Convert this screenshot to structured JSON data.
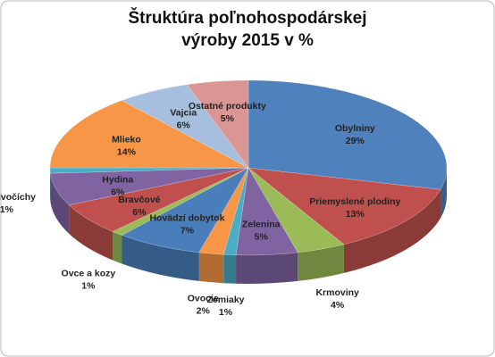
{
  "chart_data": {
    "type": "pie3d",
    "title": "Štruktúra poľnohospodárskej výroby 2015 v %",
    "categories": [
      "Obylniny",
      "Priemyslené plodiny",
      "Krmoviny",
      "Zelenina",
      "Zemiaky",
      "Ovocie",
      "Hovädzí dobytok",
      "Ovce a kozy",
      "Bravčové",
      "Hydina",
      "Iné živočíchy",
      "Mlieko",
      "Vajcia",
      "Ostatné produkty"
    ],
    "values": [
      29,
      13,
      4,
      5,
      1,
      2,
      7,
      1,
      6,
      6,
      1,
      14,
      6,
      5
    ],
    "value_labels": [
      "29%",
      "13%",
      "4%",
      "5%",
      "1%",
      "2%",
      "7%",
      "1%",
      "6%",
      "6%",
      "1%",
      "14%",
      "6%",
      "5%"
    ],
    "colors": [
      "#4f81bd",
      "#c0504d",
      "#9bbb59",
      "#8064a2",
      "#4bacc6",
      "#f79646",
      "#4a7ebb",
      "#9bbb59",
      "#c0504d",
      "#8064a2",
      "#4bacc6",
      "#f79646",
      "#a7bfde",
      "#d99694"
    ]
  }
}
